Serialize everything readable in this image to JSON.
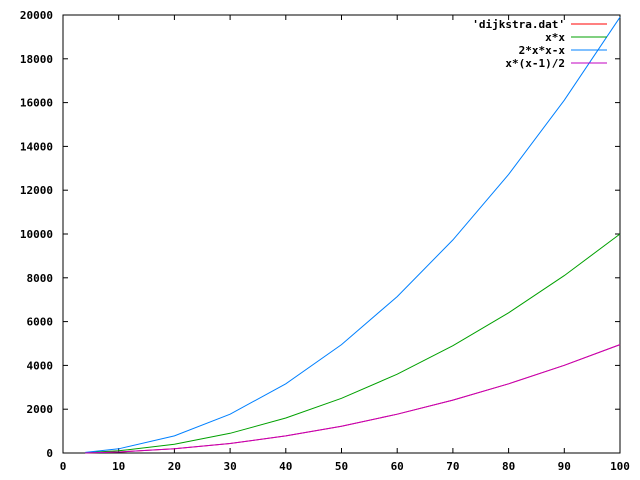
{
  "chart_data": {
    "type": "line",
    "title": "",
    "xlabel": "",
    "ylabel": "",
    "xlim": [
      0,
      100
    ],
    "ylim": [
      0,
      20000
    ],
    "x_ticks": [
      0,
      10,
      20,
      30,
      40,
      50,
      60,
      70,
      80,
      90,
      100
    ],
    "y_ticks": [
      0,
      2000,
      4000,
      6000,
      8000,
      10000,
      12000,
      14000,
      16000,
      18000,
      20000
    ],
    "legend_position": "top-right",
    "grid": false,
    "series": [
      {
        "name": "'dijkstra.dat'",
        "color": "#ff0000",
        "x": [
          4,
          10,
          20,
          30,
          40,
          50,
          60,
          70,
          80,
          90,
          100
        ],
        "y": [
          6,
          45,
          190,
          435,
          780,
          1225,
          1770,
          2415,
          3160,
          4005,
          4950
        ]
      },
      {
        "name": "x*x",
        "color": "#00a000",
        "x": [
          4,
          10,
          20,
          30,
          40,
          50,
          60,
          70,
          80,
          90,
          100
        ],
        "y": [
          16,
          100,
          400,
          900,
          1600,
          2500,
          3600,
          4900,
          6400,
          8100,
          10000
        ]
      },
      {
        "name": "2*x*x-x",
        "color": "#0080ff",
        "x": [
          4,
          10,
          20,
          30,
          40,
          50,
          60,
          70,
          80,
          90,
          100
        ],
        "y": [
          28,
          190,
          780,
          1770,
          3160,
          4950,
          7140,
          9730,
          12720,
          16110,
          19900
        ]
      },
      {
        "name": "x*(x-1)/2",
        "color": "#c000c0",
        "x": [
          4,
          10,
          20,
          30,
          40,
          50,
          60,
          70,
          80,
          90,
          100
        ],
        "y": [
          6,
          45,
          190,
          435,
          780,
          1225,
          1770,
          2415,
          3160,
          4005,
          4950
        ]
      }
    ]
  }
}
